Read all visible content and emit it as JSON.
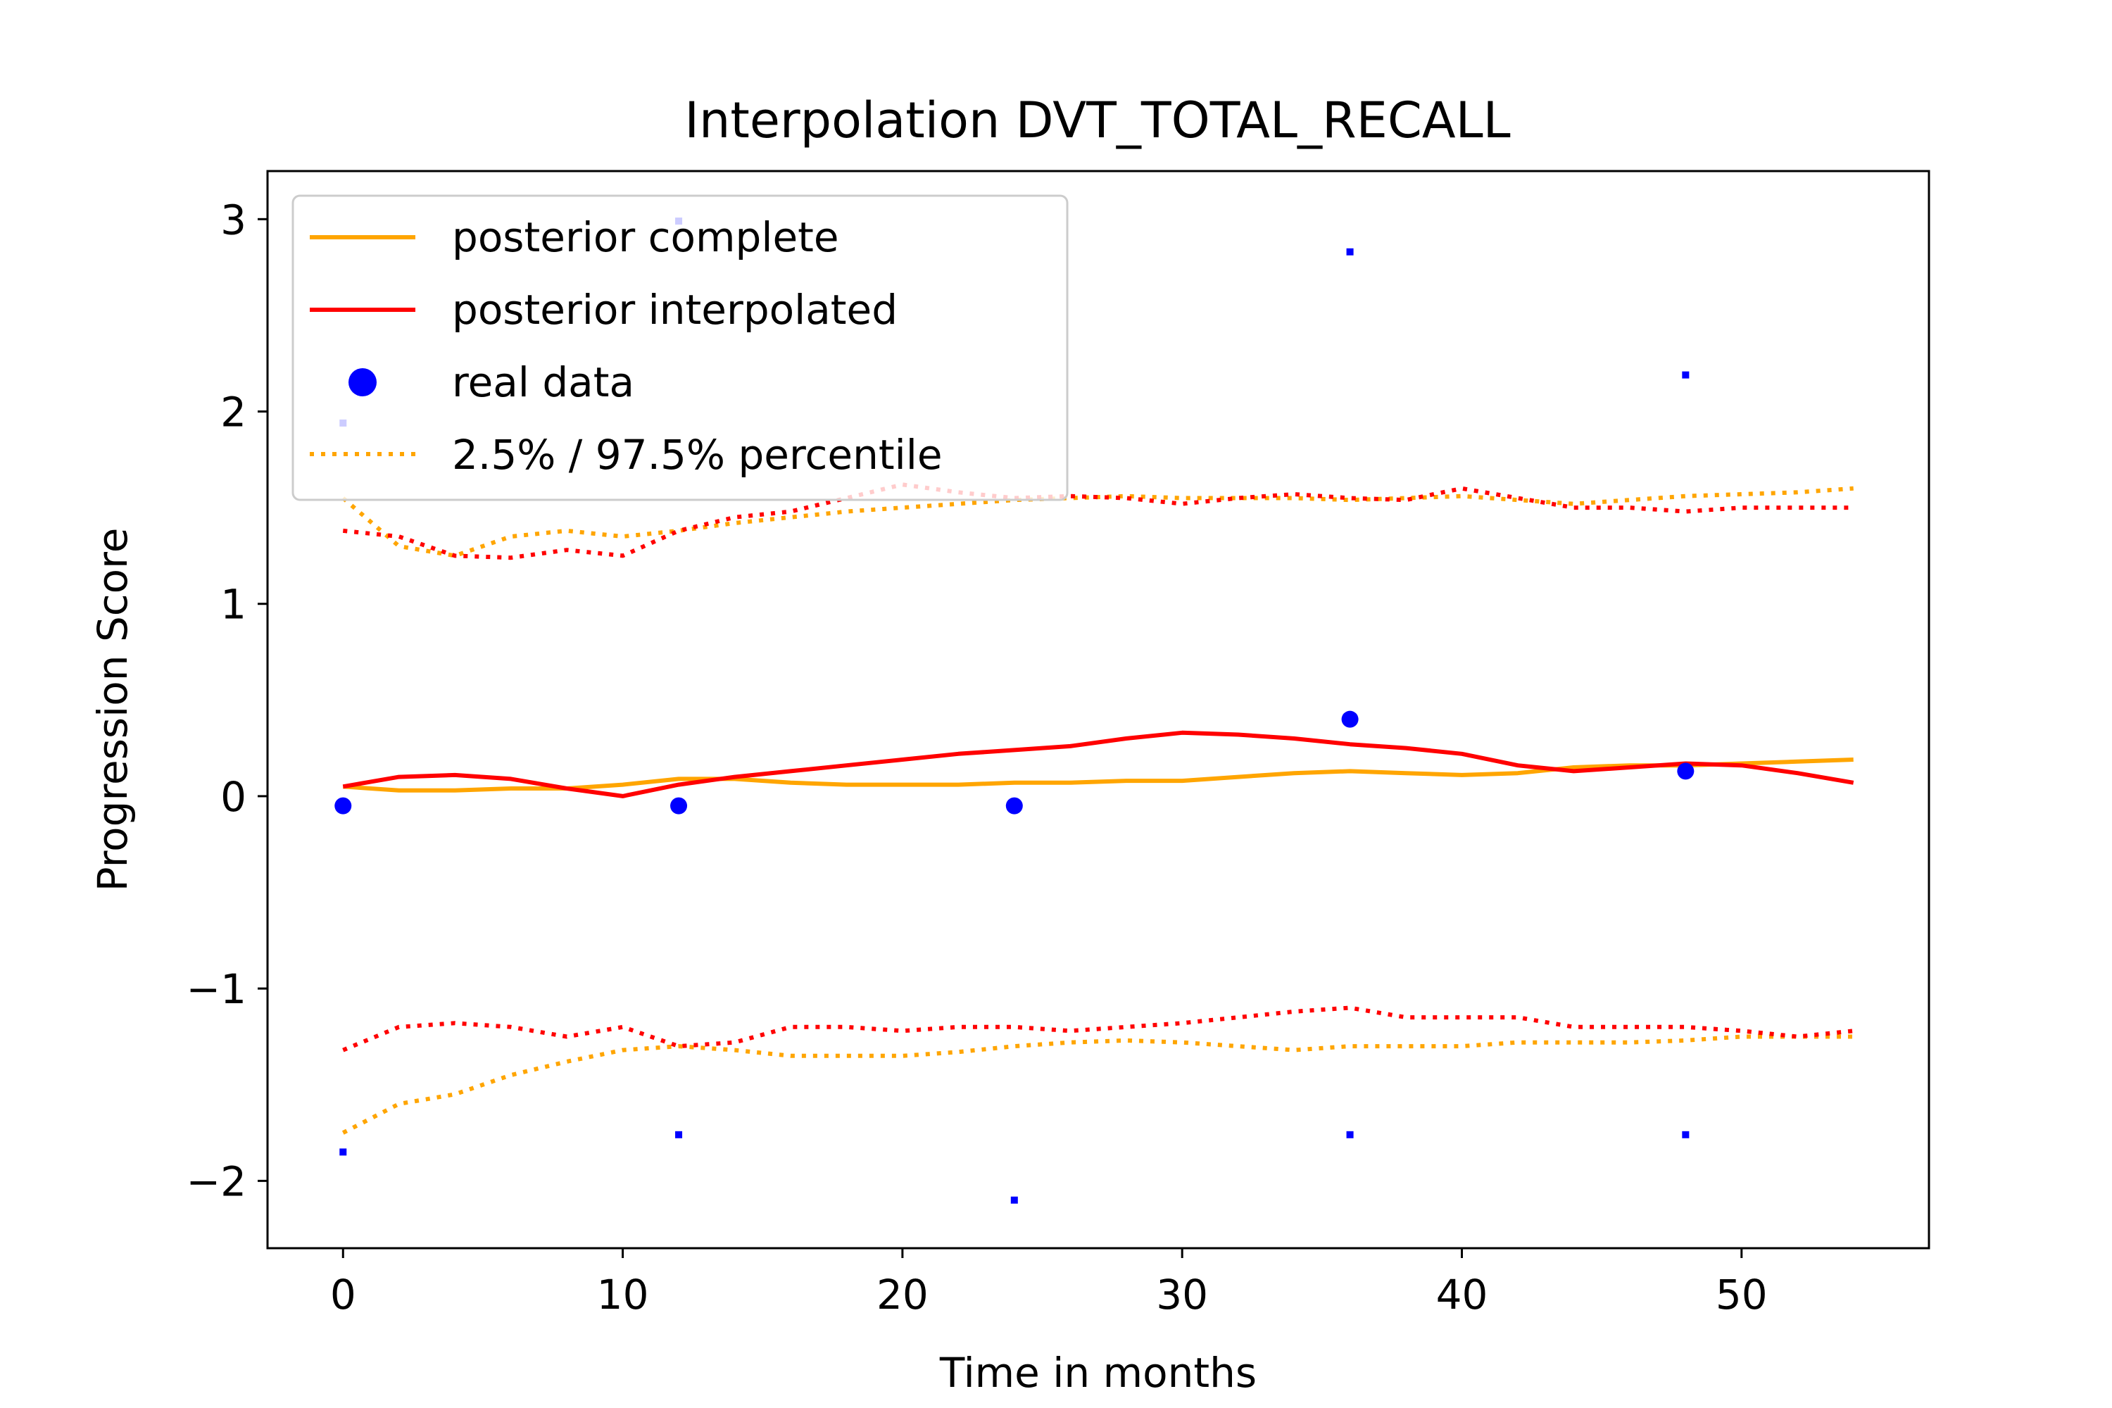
{
  "chart_data": {
    "type": "line",
    "title": "Interpolation DVT_TOTAL_RECALL",
    "xlabel": "Time in months",
    "ylabel": "Progression Score",
    "xlim": [
      -2.7,
      56.7
    ],
    "ylim": [
      -2.35,
      3.25
    ],
    "x_ticks": [
      0,
      10,
      20,
      30,
      40,
      50
    ],
    "y_ticks": [
      -2,
      -1,
      0,
      1,
      2,
      3
    ],
    "x_tick_labels": [
      "0",
      "10",
      "20",
      "30",
      "40",
      "50"
    ],
    "y_tick_labels": [
      "−2",
      "−1",
      "0",
      "1",
      "2",
      "3"
    ],
    "grid": false,
    "legend_position": "upper-left",
    "legend": [
      {
        "label": "posterior complete",
        "style": "solid-line",
        "color": "#ffa500"
      },
      {
        "label": "posterior interpolated",
        "style": "solid-line",
        "color": "#ff0000"
      },
      {
        "label": "real data",
        "style": "marker",
        "color": "#0000ff"
      },
      {
        "label": "2.5% / 97.5% percentile",
        "style": "dotted-line",
        "color": "#ffa500"
      }
    ],
    "series": [
      {
        "name": "posterior complete",
        "color": "#ffa500",
        "style": "solid",
        "x": [
          0,
          2,
          4,
          6,
          8,
          10,
          12,
          14,
          16,
          18,
          20,
          22,
          24,
          26,
          28,
          30,
          32,
          34,
          36,
          38,
          40,
          42,
          44,
          46,
          48,
          50,
          52,
          54
        ],
        "y": [
          0.05,
          0.03,
          0.03,
          0.04,
          0.04,
          0.06,
          0.09,
          0.09,
          0.07,
          0.06,
          0.06,
          0.06,
          0.07,
          0.07,
          0.08,
          0.08,
          0.1,
          0.12,
          0.13,
          0.12,
          0.11,
          0.12,
          0.15,
          0.16,
          0.16,
          0.17,
          0.18,
          0.19
        ]
      },
      {
        "name": "posterior interpolated",
        "color": "#ff0000",
        "style": "solid",
        "x": [
          0,
          2,
          4,
          6,
          8,
          10,
          12,
          14,
          16,
          18,
          20,
          22,
          24,
          26,
          28,
          30,
          32,
          34,
          36,
          38,
          40,
          42,
          44,
          46,
          48,
          50,
          52,
          54
        ],
        "y": [
          0.05,
          0.1,
          0.11,
          0.09,
          0.04,
          0.0,
          0.06,
          0.1,
          0.13,
          0.16,
          0.19,
          0.22,
          0.24,
          0.26,
          0.3,
          0.33,
          0.32,
          0.3,
          0.27,
          0.25,
          0.22,
          0.16,
          0.13,
          0.15,
          0.17,
          0.16,
          0.12,
          0.07
        ]
      },
      {
        "name": "posterior complete 97.5% percentile",
        "color": "#ffa500",
        "style": "dotted",
        "x": [
          0,
          2,
          4,
          6,
          8,
          10,
          12,
          14,
          16,
          18,
          20,
          22,
          24,
          26,
          28,
          30,
          32,
          34,
          36,
          38,
          40,
          42,
          44,
          46,
          48,
          50,
          52,
          54
        ],
        "y": [
          1.55,
          1.3,
          1.25,
          1.35,
          1.38,
          1.35,
          1.38,
          1.42,
          1.45,
          1.48,
          1.5,
          1.52,
          1.54,
          1.55,
          1.56,
          1.55,
          1.55,
          1.55,
          1.54,
          1.55,
          1.56,
          1.54,
          1.52,
          1.54,
          1.56,
          1.57,
          1.58,
          1.6
        ]
      },
      {
        "name": "posterior interpolated 97.5% percentile",
        "color": "#ff0000",
        "style": "dotted",
        "x": [
          0,
          2,
          4,
          6,
          8,
          10,
          12,
          14,
          16,
          18,
          20,
          22,
          24,
          26,
          28,
          30,
          32,
          34,
          36,
          38,
          40,
          42,
          44,
          46,
          48,
          50,
          52,
          54
        ],
        "y": [
          1.38,
          1.35,
          1.25,
          1.24,
          1.28,
          1.25,
          1.38,
          1.45,
          1.48,
          1.55,
          1.62,
          1.58,
          1.55,
          1.56,
          1.55,
          1.52,
          1.55,
          1.57,
          1.55,
          1.54,
          1.6,
          1.55,
          1.5,
          1.5,
          1.48,
          1.5,
          1.5,
          1.5
        ]
      },
      {
        "name": "posterior complete 2.5% percentile",
        "color": "#ffa500",
        "style": "dotted",
        "x": [
          0,
          2,
          4,
          6,
          8,
          10,
          12,
          14,
          16,
          18,
          20,
          22,
          24,
          26,
          28,
          30,
          32,
          34,
          36,
          38,
          40,
          42,
          44,
          46,
          48,
          50,
          52,
          54
        ],
        "y": [
          -1.75,
          -1.6,
          -1.55,
          -1.45,
          -1.38,
          -1.32,
          -1.3,
          -1.32,
          -1.35,
          -1.35,
          -1.35,
          -1.33,
          -1.3,
          -1.28,
          -1.27,
          -1.28,
          -1.3,
          -1.32,
          -1.3,
          -1.3,
          -1.3,
          -1.28,
          -1.28,
          -1.28,
          -1.27,
          -1.25,
          -1.25,
          -1.25
        ]
      },
      {
        "name": "posterior interpolated 2.5% percentile",
        "color": "#ff0000",
        "style": "dotted",
        "x": [
          0,
          2,
          4,
          6,
          8,
          10,
          12,
          14,
          16,
          18,
          20,
          22,
          24,
          26,
          28,
          30,
          32,
          34,
          36,
          38,
          40,
          42,
          44,
          46,
          48,
          50,
          52,
          54
        ],
        "y": [
          -1.32,
          -1.2,
          -1.18,
          -1.2,
          -1.25,
          -1.2,
          -1.3,
          -1.28,
          -1.2,
          -1.2,
          -1.22,
          -1.2,
          -1.2,
          -1.22,
          -1.2,
          -1.18,
          -1.15,
          -1.12,
          -1.1,
          -1.15,
          -1.15,
          -1.15,
          -1.2,
          -1.2,
          -1.2,
          -1.22,
          -1.25,
          -1.22
        ]
      },
      {
        "name": "real data",
        "color": "#0000ff",
        "style": "marker",
        "x": [
          0,
          12,
          24,
          36,
          48
        ],
        "y": [
          -0.05,
          -0.05,
          -0.05,
          0.4,
          0.13
        ]
      },
      {
        "name": "real data upper bounds",
        "color": "#0000ff",
        "style": "small-marker",
        "x": [
          0,
          12,
          36,
          48
        ],
        "y": [
          1.94,
          2.99,
          2.83,
          2.19
        ]
      },
      {
        "name": "real data lower bounds",
        "color": "#0000ff",
        "style": "small-marker",
        "x": [
          0,
          12,
          24,
          36,
          48
        ],
        "y": [
          -1.85,
          -1.76,
          -2.1,
          -1.76,
          -1.76
        ]
      }
    ]
  }
}
